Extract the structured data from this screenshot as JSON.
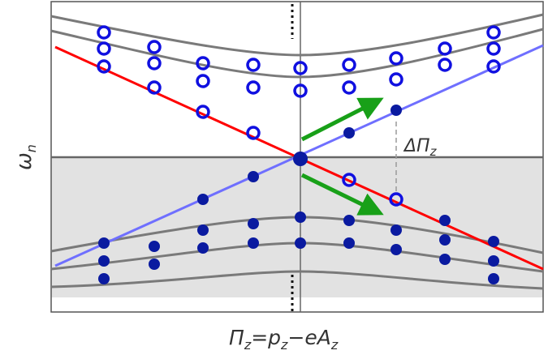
{
  "ylabel": "ωn",
  "ylabel_main": "ω",
  "ylabel_sub": "n",
  "xlabel": "Πz=pz−eAz",
  "xlabel_parts": [
    "Π",
    "z",
    "=p",
    "z",
    "−eA",
    "z"
  ],
  "annotation": "ΔΠz",
  "annotation_main": "ΔΠ",
  "annotation_sub": "z",
  "colors": {
    "frame": "#555555",
    "axis": "#666666",
    "shade": "#e2e2e2",
    "band_curve": "#7a7a7a",
    "red_line": "#ff0000",
    "blue_line": "#6f6fff",
    "marker": "#0a1aa0",
    "open_marker": "#1010e0",
    "arrow": "#18a018",
    "dash": "#9a9a9a"
  },
  "icons": {
    "open_marker": "open-circle-marker-icon",
    "filled_marker": "filled-circle-marker-icon",
    "arrow": "green-arrow-icon"
  }
}
